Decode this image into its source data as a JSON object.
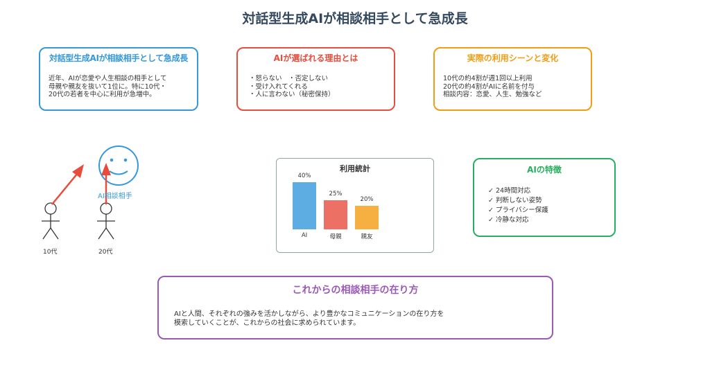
{
  "title": "対話型生成AIが相談相手として急成長",
  "card1": {
    "title": "対話型生成AIが相談相手として急成長",
    "lines": [
      "近年、AIが恋愛や人生相談の相手として",
      "母親や親友を抜いて1位に。特に10代・",
      "20代の若者を中心に利用が急増中。"
    ]
  },
  "card2": {
    "title": "AIが選ばれる理由とは",
    "lines": [
      "・怒らない　・否定しない",
      "・受け入れてくれる",
      "・人に言わない（秘密保持）"
    ]
  },
  "card3": {
    "title": "実際の利用シーンと変化",
    "lines": [
      "10代の約4割が週1回以上利用",
      "20代の約4割がAIに名前を付与",
      "相談内容：恋愛、人生、勉強など"
    ]
  },
  "figures": {
    "ai_label": "AI相談相手",
    "person1_label": "10代",
    "person2_label": "20代"
  },
  "stats": {
    "title": "利用統計"
  },
  "chart_data": {
    "type": "bar",
    "title": "利用統計",
    "categories": [
      "AI",
      "母親",
      "親友"
    ],
    "values": [
      40,
      25,
      20
    ],
    "value_labels": [
      "40%",
      "25%",
      "20%"
    ],
    "colors": [
      "#5dade2",
      "#ec7063",
      "#f5b041"
    ],
    "ylim": [
      0,
      40
    ]
  },
  "card4": {
    "title": "AIの特徴",
    "lines": [
      "✓ 24時間対応",
      "✓ 判断しない姿勢",
      "✓ プライバシー保護",
      "✓ 冷静な対応"
    ]
  },
  "card5": {
    "title": "これからの相談相手の在り方",
    "lines": [
      "AIと人間、それぞれの強みを活かしながら、より豊かなコミュニケーションの在り方を",
      "模索していくことが、これからの社会に求められています。"
    ]
  },
  "colors": {
    "blue": "#3498db",
    "red": "#e74c3c",
    "orange": "#f39c12",
    "green": "#27ae60",
    "purple": "#9b59b6",
    "arrow": "#e74c3c"
  }
}
